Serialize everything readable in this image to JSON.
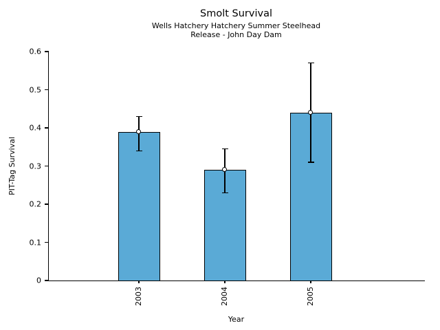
{
  "chart_data": {
    "type": "bar",
    "title": "Smolt Survival",
    "subtitle_lines": [
      "Wells Hatchery Hatchery Summer Steelhead",
      "Release - John Day Dam"
    ],
    "xlabel": "Year",
    "ylabel": "PIT-Tag Survival",
    "categories": [
      "2003",
      "2004",
      "2005"
    ],
    "values": [
      0.39,
      0.29,
      0.44
    ],
    "error_low": [
      0.34,
      0.23,
      0.31
    ],
    "error_high": [
      0.43,
      0.345,
      0.57
    ],
    "ylim": [
      0,
      0.6
    ],
    "yticks": [
      0,
      0.1,
      0.2,
      0.3,
      0.4,
      0.5,
      0.6
    ],
    "ytick_labels": [
      "0",
      "0.1",
      "0.2",
      "0.3",
      "0.4",
      "0.5",
      "0.6"
    ],
    "bar_color": "#5AAAD6",
    "bar_edge_color": "#000000",
    "error_color": "#000000",
    "marker": "open-circle",
    "grid": false,
    "legend": null
  }
}
